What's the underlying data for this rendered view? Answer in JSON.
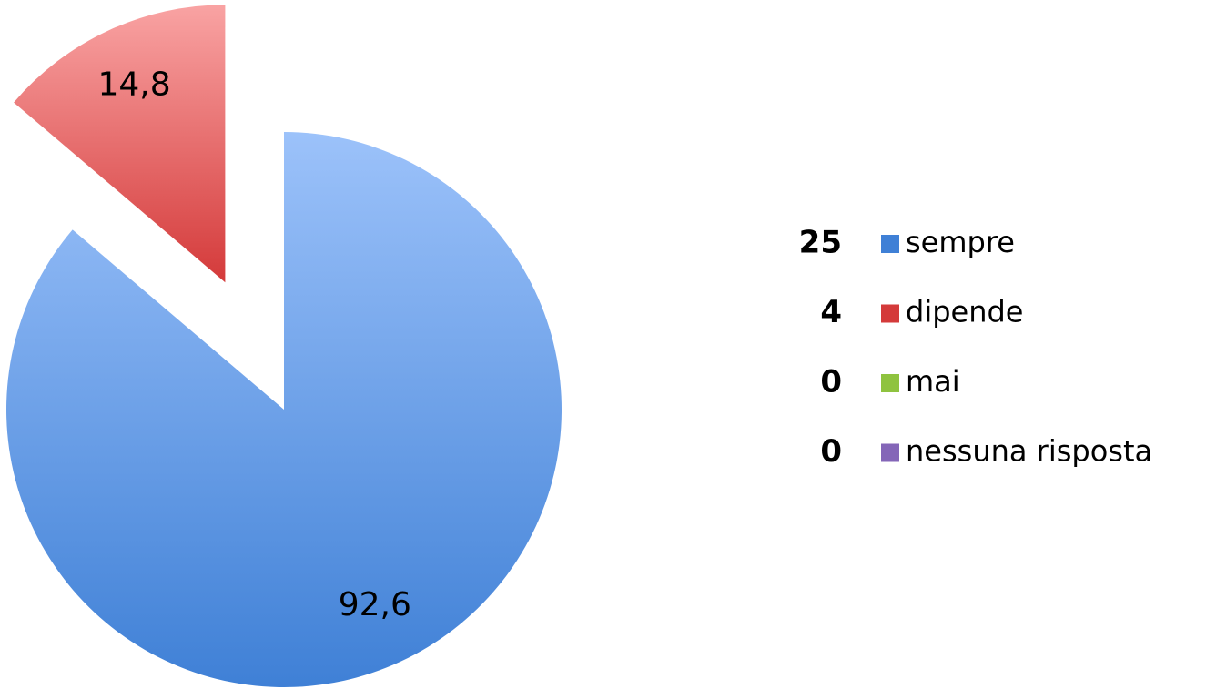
{
  "chart_data": {
    "type": "pie",
    "categories": [
      "sempre",
      "dipende",
      "mai",
      "nessuna risposta"
    ],
    "values": [
      92.6,
      14.8,
      0,
      0
    ],
    "value_labels": [
      "92,6",
      "14,8",
      null,
      null
    ],
    "counts": [
      25,
      4,
      0,
      0
    ],
    "colors": [
      [
        "#9cc2fa",
        "#3f80d6"
      ],
      [
        "#f9a3a3",
        "#d43a3a"
      ],
      [
        "#c6e58a",
        "#8fc33f"
      ],
      [
        "#b9a3d9",
        "#8466b8"
      ]
    ],
    "explode": [
      false,
      true,
      false,
      false
    ],
    "legend": "right"
  }
}
